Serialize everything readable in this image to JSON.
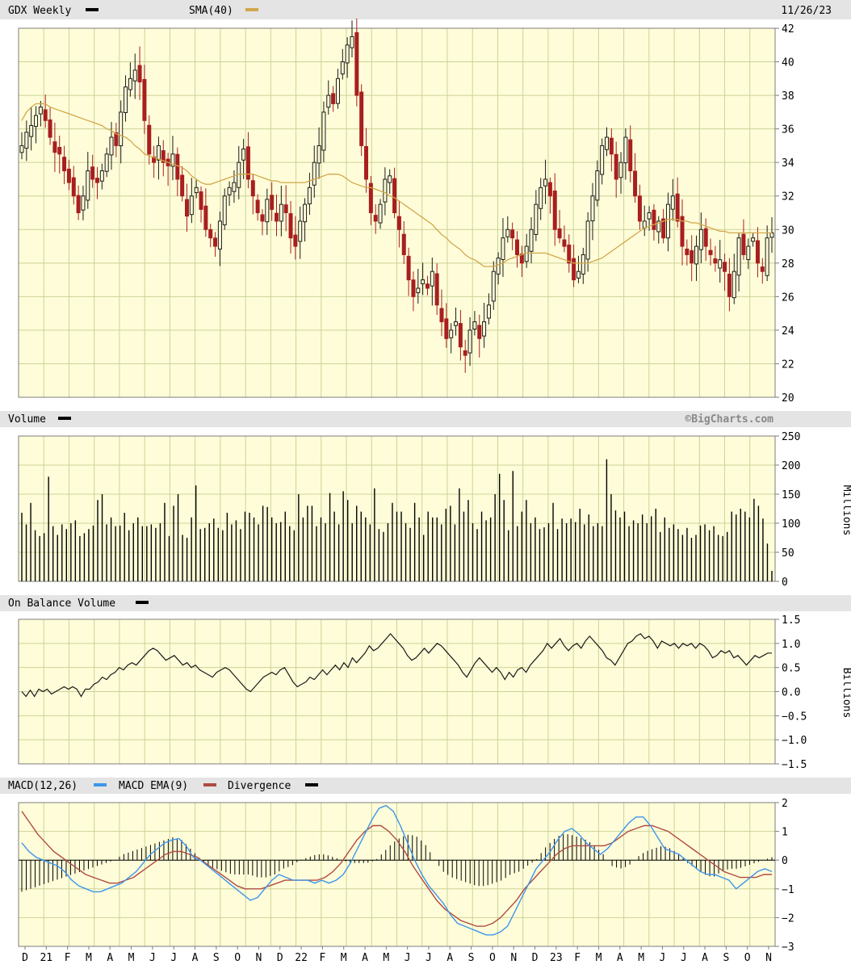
{
  "header": {
    "symbol_label": "GDX Weekly",
    "sma_label": "SMA(40)",
    "date": "11/26/23"
  },
  "watermark": "©BigCharts.com",
  "colors": {
    "background": "#ffffff",
    "plot_background": "#fffdd9",
    "header_background": "#e4e4e4",
    "grid": "#cbd297",
    "frame": "#7d7d7d",
    "candle_up": "#1a1a1a",
    "candle_down": "#a81f1f",
    "sma_line": "#d2a64b",
    "volume_bar": "#000000",
    "obv_line": "#1a1a1a",
    "macd_line": "#3d95eb",
    "macd_ema_line": "#b04a40",
    "divergence_bar": "#000000"
  },
  "x_axis": {
    "labels": [
      "D",
      "21",
      "F",
      "M",
      "A",
      "M",
      "J",
      "J",
      "A",
      "S",
      "O",
      "N",
      "D",
      "22",
      "F",
      "M",
      "A",
      "M",
      "J",
      "J",
      "A",
      "S",
      "O",
      "N",
      "D",
      "23",
      "F",
      "M",
      "A",
      "M",
      "J",
      "J",
      "A",
      "S",
      "O",
      "N"
    ]
  },
  "panels": [
    {
      "key": "price",
      "title": "GDX Weekly",
      "y_ticks": [
        "42",
        "40",
        "38",
        "36",
        "34",
        "32",
        "30",
        "28",
        "26",
        "24",
        "22",
        "20"
      ]
    },
    {
      "key": "volume",
      "title": "Volume",
      "unit_label": "Millions",
      "y_ticks": [
        "250",
        "200",
        "150",
        "100",
        "50",
        "0"
      ]
    },
    {
      "key": "obv",
      "title": "On Balance Volume",
      "unit_label": "Billions",
      "y_ticks": [
        "1.5",
        "1.0",
        "0.5",
        "0.0",
        "−0.5",
        "−1.0",
        "−1.5"
      ]
    },
    {
      "key": "macd",
      "title": "MACD(12,26)",
      "ema_label": "MACD EMA(9)",
      "div_label": "Divergence",
      "y_ticks": [
        "2",
        "1",
        "0",
        "−1",
        "−2",
        "−3"
      ]
    }
  ],
  "chart_data": [
    {
      "type": "candlestick",
      "title": "GDX Weekly",
      "ylim": [
        20,
        42
      ],
      "x_start": "2020-12",
      "x_end": "2023-11",
      "close": [
        35.0,
        35.8,
        36.2,
        36.8,
        37.3,
        36.5,
        35.5,
        34.6,
        34.5,
        33.5,
        32.8,
        32.0,
        31.0,
        32.0,
        33.5,
        33.0,
        32.8,
        33.5,
        34.5,
        35.5,
        35.0,
        37.0,
        38.5,
        39.0,
        39.5,
        38.8,
        36.5,
        34.5,
        34.0,
        35.0,
        34.0,
        33.8,
        34.5,
        33.0,
        32.0,
        30.8,
        32.0,
        32.5,
        31.2,
        30.0,
        29.5,
        29.0,
        30.5,
        32.0,
        32.5,
        32.8,
        34.0,
        34.8,
        33.0,
        32.0,
        31.0,
        30.5,
        31.8,
        31.2,
        30.5,
        31.5,
        31.0,
        29.5,
        29.0,
        30.5,
        31.5,
        32.5,
        34.0,
        35.0,
        37.0,
        38.0,
        37.5,
        39.0,
        40.0,
        41.0,
        41.5,
        38.0,
        35.0,
        33.0,
        31.0,
        30.5,
        31.5,
        33.0,
        33.2,
        31.0,
        30.0,
        28.5,
        27.0,
        26.0,
        26.5,
        27.0,
        26.5,
        27.5,
        25.5,
        24.5,
        23.5,
        24.0,
        24.5,
        23.0,
        22.5,
        24.0,
        24.5,
        23.5,
        24.5,
        25.5,
        27.5,
        28.3,
        29.5,
        30.0,
        29.5,
        28.5,
        28.0,
        29.0,
        30.0,
        31.5,
        32.5,
        33.0,
        32.0,
        30.0,
        29.5,
        29.0,
        28.0,
        27.0,
        27.5,
        28.5,
        30.5,
        32.0,
        33.5,
        35.0,
        35.5,
        34.5,
        33.0,
        34.0,
        35.5,
        33.5,
        32.0,
        30.5,
        30.5,
        31.0,
        30.0,
        30.5,
        29.5,
        31.5,
        32.0,
        30.5,
        29.0,
        28.5,
        28.0,
        29.0,
        30.0,
        29.0,
        28.5,
        28.0,
        28.2,
        27.5,
        26.0,
        27.5,
        29.5,
        28.5,
        29.0,
        29.5,
        28.0,
        27.5,
        29.5,
        29.8
      ],
      "sma40": [
        36.5,
        37.0,
        37.3,
        37.5,
        37.5,
        37.5,
        37.3,
        37.2,
        37.1,
        37.0,
        36.9,
        36.8,
        36.7,
        36.6,
        36.5,
        36.4,
        36.3,
        36.2,
        36.0,
        35.9,
        35.7,
        35.6,
        35.5,
        35.3,
        35.0,
        34.8,
        34.5,
        34.4,
        34.3,
        34.2,
        34.1,
        34.0,
        33.9,
        33.8,
        33.7,
        33.5,
        33.2,
        33.0,
        32.8,
        32.7,
        32.7,
        32.8,
        32.9,
        33.0,
        33.1,
        33.2,
        33.3,
        33.3,
        33.3,
        33.3,
        33.2,
        33.1,
        33.0,
        32.9,
        32.9,
        32.8,
        32.8,
        32.8,
        32.8,
        32.8,
        32.8,
        32.9,
        33.0,
        33.1,
        33.2,
        33.3,
        33.3,
        33.3,
        33.2,
        33.0,
        32.8,
        32.7,
        32.6,
        32.5,
        32.5,
        32.4,
        32.3,
        32.2,
        32.0,
        31.9,
        31.7,
        31.5,
        31.3,
        31.1,
        30.9,
        30.7,
        30.5,
        30.3,
        30.0,
        29.7,
        29.5,
        29.2,
        29.0,
        28.8,
        28.5,
        28.3,
        28.2,
        28.0,
        27.8,
        27.8,
        27.8,
        27.9,
        28.0,
        28.2,
        28.3,
        28.4,
        28.5,
        28.6,
        28.6,
        28.6,
        28.6,
        28.6,
        28.5,
        28.4,
        28.3,
        28.2,
        28.1,
        28.0,
        28.0,
        28.0,
        28.0,
        28.1,
        28.2,
        28.3,
        28.5,
        28.7,
        28.9,
        29.1,
        29.3,
        29.5,
        29.7,
        29.9,
        30.1,
        30.2,
        30.3,
        30.4,
        30.5,
        30.6,
        30.6,
        30.6,
        30.5,
        30.5,
        30.4,
        30.4,
        30.3,
        30.2,
        30.1,
        30.0,
        29.9,
        29.9,
        29.8,
        29.8,
        29.8,
        29.8,
        29.8,
        29.8,
        29.8,
        29.8,
        29.8,
        29.8
      ]
    },
    {
      "type": "bar",
      "title": "Volume",
      "ylabel": "Millions",
      "ylim": [
        0,
        250
      ],
      "values": [
        118,
        98,
        135,
        88,
        78,
        83,
        180,
        95,
        80,
        98,
        90,
        100,
        105,
        78,
        83,
        90,
        96,
        140,
        150,
        98,
        110,
        95,
        96,
        118,
        88,
        100,
        110,
        95,
        95,
        98,
        92,
        100,
        135,
        78,
        130,
        150,
        80,
        75,
        110,
        165,
        90,
        92,
        100,
        108,
        92,
        88,
        118,
        98,
        105,
        90,
        120,
        118,
        110,
        98,
        130,
        128,
        110,
        100,
        102,
        120,
        95,
        88,
        150,
        110,
        130,
        130,
        95,
        110,
        100,
        152,
        120,
        98,
        155,
        140,
        100,
        130,
        120,
        110,
        98,
        160,
        90,
        85,
        100,
        135,
        120,
        120,
        100,
        92,
        135,
        110,
        80,
        120,
        110,
        110,
        98,
        125,
        130,
        98,
        160,
        120,
        140,
        100,
        90,
        120,
        105,
        110,
        150,
        185,
        140,
        88,
        190,
        95,
        120,
        140,
        100,
        110,
        90,
        93,
        100,
        135,
        90,
        108,
        100,
        108,
        102,
        125,
        98,
        115,
        95,
        100,
        95,
        210,
        150,
        122,
        110,
        120,
        95,
        105,
        100,
        115,
        100,
        112,
        125,
        85,
        110,
        92,
        98,
        90,
        80,
        92,
        75,
        80,
        96,
        98,
        88,
        95,
        80,
        78,
        85,
        120,
        115,
        125,
        120,
        110,
        142,
        130,
        108,
        65,
        18
      ]
    },
    {
      "type": "line",
      "title": "On Balance Volume",
      "ylabel": "Billions",
      "ylim": [
        -1.5,
        1.5
      ],
      "values": [
        0.0,
        -0.1,
        0.03,
        -0.1,
        0.05,
        0.0,
        0.05,
        -0.05,
        0.0,
        0.05,
        0.1,
        0.05,
        0.1,
        0.05,
        -0.1,
        0.05,
        0.05,
        0.15,
        0.2,
        0.3,
        0.25,
        0.35,
        0.4,
        0.5,
        0.45,
        0.55,
        0.6,
        0.55,
        0.65,
        0.75,
        0.85,
        0.9,
        0.85,
        0.75,
        0.65,
        0.7,
        0.75,
        0.65,
        0.55,
        0.6,
        0.5,
        0.55,
        0.45,
        0.4,
        0.35,
        0.3,
        0.4,
        0.45,
        0.5,
        0.45,
        0.35,
        0.25,
        0.15,
        0.05,
        0.0,
        0.1,
        0.2,
        0.3,
        0.35,
        0.4,
        0.35,
        0.45,
        0.5,
        0.35,
        0.2,
        0.1,
        0.15,
        0.2,
        0.3,
        0.25,
        0.35,
        0.45,
        0.35,
        0.45,
        0.55,
        0.45,
        0.6,
        0.5,
        0.7,
        0.6,
        0.7,
        0.8,
        0.95,
        0.85,
        0.9,
        1.0,
        1.1,
        1.2,
        1.1,
        1.0,
        0.9,
        0.75,
        0.65,
        0.7,
        0.8,
        0.9,
        0.8,
        0.9,
        1.0,
        0.95,
        0.85,
        0.75,
        0.65,
        0.55,
        0.4,
        0.3,
        0.45,
        0.6,
        0.7,
        0.6,
        0.5,
        0.4,
        0.5,
        0.4,
        0.25,
        0.4,
        0.3,
        0.45,
        0.5,
        0.4,
        0.55,
        0.65,
        0.75,
        0.85,
        1.0,
        0.9,
        1.0,
        1.1,
        0.95,
        0.85,
        0.95,
        1.0,
        0.9,
        1.05,
        1.15,
        1.05,
        0.95,
        0.85,
        0.7,
        0.65,
        0.55,
        0.7,
        0.85,
        1.0,
        1.05,
        1.15,
        1.2,
        1.1,
        1.15,
        1.05,
        0.9,
        1.05,
        1.0,
        0.95,
        1.0,
        0.9,
        1.0,
        0.95,
        1.0,
        0.9,
        1.0,
        0.95,
        0.85,
        0.7,
        0.75,
        0.85,
        0.8,
        0.85,
        0.7,
        0.75,
        0.65,
        0.55,
        0.65,
        0.75,
        0.7,
        0.75,
        0.8,
        0.8
      ]
    },
    {
      "type": "line",
      "title": "MACD(12,26)",
      "ylim": [
        -3,
        2
      ],
      "series": [
        {
          "name": "MACD(12,26)",
          "values": [
            0.6,
            0.3,
            0.1,
            0.0,
            -0.1,
            -0.2,
            -0.4,
            -0.7,
            -0.9,
            -1.0,
            -1.1,
            -1.1,
            -1.0,
            -0.9,
            -0.8,
            -0.6,
            -0.4,
            -0.1,
            0.2,
            0.4,
            0.6,
            0.7,
            0.75,
            0.5,
            0.1,
            0.0,
            -0.2,
            -0.4,
            -0.6,
            -0.8,
            -1.0,
            -1.2,
            -1.4,
            -1.3,
            -1.0,
            -0.7,
            -0.5,
            -0.6,
            -0.7,
            -0.7,
            -0.7,
            -0.8,
            -0.7,
            -0.8,
            -0.7,
            -0.5,
            -0.1,
            0.4,
            0.9,
            1.4,
            1.8,
            1.9,
            1.7,
            1.2,
            0.6,
            0.0,
            -0.5,
            -0.9,
            -1.2,
            -1.5,
            -1.9,
            -2.2,
            -2.3,
            -2.4,
            -2.5,
            -2.6,
            -2.6,
            -2.5,
            -2.3,
            -1.8,
            -1.3,
            -0.8,
            -0.3,
            0.0,
            0.3,
            0.7,
            1.0,
            1.1,
            0.9,
            0.6,
            0.4,
            0.2,
            0.4,
            0.7,
            1.0,
            1.3,
            1.5,
            1.5,
            1.2,
            0.8,
            0.4,
            0.3,
            0.2,
            0.0,
            -0.2,
            -0.4,
            -0.5,
            -0.5,
            -0.6,
            -0.7,
            -1.0,
            -0.8,
            -0.6,
            -0.4,
            -0.3,
            -0.4
          ]
        },
        {
          "name": "MACD EMA(9)",
          "values": [
            1.7,
            1.3,
            0.9,
            0.6,
            0.3,
            0.1,
            -0.1,
            -0.3,
            -0.5,
            -0.6,
            -0.7,
            -0.8,
            -0.8,
            -0.7,
            -0.6,
            -0.4,
            -0.2,
            0.0,
            0.2,
            0.3,
            0.3,
            0.2,
            0.1,
            -0.1,
            -0.3,
            -0.5,
            -0.7,
            -0.9,
            -1.0,
            -1.0,
            -1.0,
            -0.9,
            -0.8,
            -0.7,
            -0.7,
            -0.7,
            -0.7,
            -0.7,
            -0.6,
            -0.4,
            -0.1,
            0.3,
            0.7,
            1.0,
            1.2,
            1.2,
            1.0,
            0.7,
            0.3,
            -0.2,
            -0.6,
            -1.0,
            -1.4,
            -1.7,
            -1.9,
            -2.1,
            -2.2,
            -2.3,
            -2.3,
            -2.2,
            -2.0,
            -1.7,
            -1.4,
            -1.0,
            -0.7,
            -0.4,
            -0.1,
            0.2,
            0.4,
            0.5,
            0.5,
            0.5,
            0.5,
            0.5,
            0.6,
            0.8,
            1.0,
            1.1,
            1.2,
            1.2,
            1.1,
            1.0,
            0.8,
            0.6,
            0.4,
            0.2,
            0.0,
            -0.2,
            -0.4,
            -0.5,
            -0.6,
            -0.6,
            -0.6,
            -0.5,
            -0.5
          ]
        },
        {
          "name": "Divergence",
          "values": [
            -1.1,
            -1.0,
            -0.9,
            -0.8,
            -0.7,
            -0.6,
            -0.5,
            -0.4,
            -0.3,
            -0.2,
            -0.1,
            0.0,
            0.2,
            0.3,
            0.4,
            0.5,
            0.6,
            0.7,
            0.8,
            0.7,
            0.4,
            0.1,
            -0.2,
            -0.3,
            -0.4,
            -0.5,
            -0.5,
            -0.5,
            -0.6,
            -0.6,
            -0.5,
            -0.3,
            -0.2,
            0.0,
            0.1,
            0.2,
            0.2,
            0.1,
            0.0,
            -0.1,
            -0.1,
            -0.1,
            0.0,
            0.3,
            0.6,
            0.8,
            0.9,
            0.8,
            0.5,
            0.0,
            -0.4,
            -0.6,
            -0.7,
            -0.8,
            -0.9,
            -0.9,
            -0.8,
            -0.7,
            -0.5,
            -0.4,
            -0.2,
            0.0,
            0.4,
            0.7,
            0.9,
            0.9,
            0.8,
            0.7,
            0.5,
            0.2,
            -0.2,
            -0.3,
            -0.2,
            0.1,
            0.3,
            0.4,
            0.5,
            0.4,
            0.2,
            -0.1,
            -0.3,
            -0.5,
            -0.6,
            -0.4,
            -0.3,
            -0.3,
            -0.2,
            -0.1,
            0.0,
            0.1
          ]
        }
      ]
    }
  ]
}
